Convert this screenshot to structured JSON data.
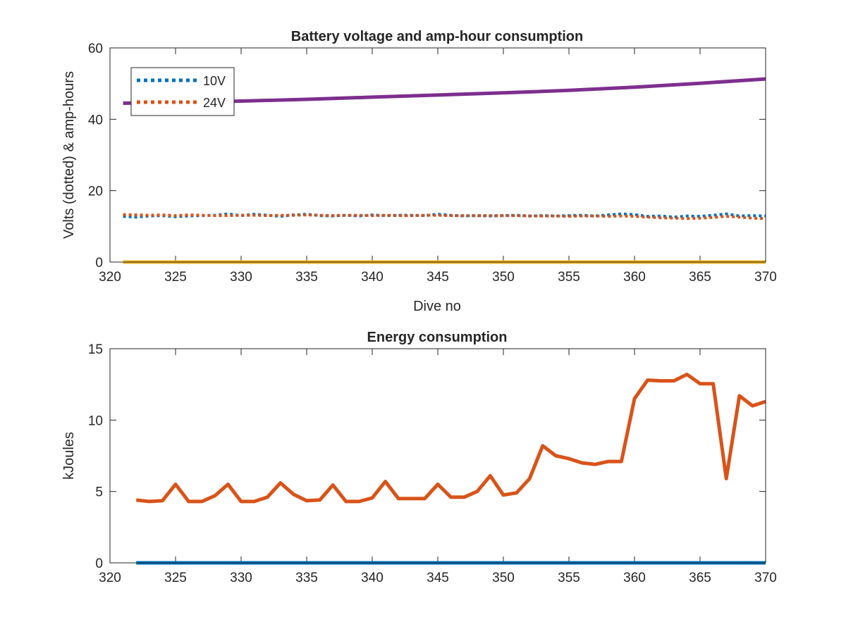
{
  "chart_data": [
    {
      "type": "line",
      "title": "Battery voltage and amp-hour consumption",
      "xlabel": "Dive no",
      "ylabel": "Volts (dotted) & amp-hours",
      "xlim": [
        320,
        370
      ],
      "ylim": [
        0,
        60
      ],
      "xticks": [
        320,
        325,
        330,
        335,
        340,
        345,
        350,
        355,
        360,
        365,
        370
      ],
      "yticks": [
        0,
        20,
        40,
        60
      ],
      "legend": {
        "placement": "top-left",
        "entries": [
          "10V",
          "24V"
        ]
      },
      "grid": false,
      "series": [
        {
          "name": "10V",
          "style": "dotted",
          "color": "#0072BD",
          "x": [
            321,
            322,
            323,
            324,
            325,
            326,
            327,
            328,
            329,
            330,
            331,
            332,
            333,
            334,
            335,
            336,
            337,
            338,
            339,
            340,
            341,
            342,
            343,
            344,
            345,
            346,
            347,
            348,
            349,
            350,
            351,
            352,
            353,
            354,
            355,
            356,
            357,
            358,
            359,
            360,
            361,
            362,
            363,
            364,
            365,
            366,
            367,
            368,
            369,
            370
          ],
          "values": [
            12.8,
            12.6,
            12.9,
            13.0,
            12.7,
            12.9,
            13.0,
            13.1,
            13.5,
            13.0,
            13.4,
            13.1,
            12.8,
            13.2,
            13.4,
            13.0,
            12.9,
            13.1,
            12.9,
            13.2,
            13.0,
            13.1,
            13.1,
            13.0,
            13.4,
            13.1,
            12.9,
            13.0,
            12.9,
            13.0,
            13.1,
            12.9,
            13.0,
            12.9,
            13.0,
            13.1,
            12.9,
            13.2,
            13.5,
            13.3,
            12.8,
            12.9,
            12.6,
            12.9,
            12.8,
            13.1,
            13.5,
            12.9,
            13.0,
            12.9
          ]
        },
        {
          "name": "24V",
          "style": "dotted",
          "color": "#D95319",
          "x": [
            321,
            322,
            323,
            324,
            325,
            326,
            327,
            328,
            329,
            330,
            331,
            332,
            333,
            334,
            335,
            336,
            337,
            338,
            339,
            340,
            341,
            342,
            343,
            344,
            345,
            346,
            347,
            348,
            349,
            350,
            351,
            352,
            353,
            354,
            355,
            356,
            357,
            358,
            359,
            360,
            361,
            362,
            363,
            364,
            365,
            366,
            367,
            368,
            369,
            370
          ],
          "values": [
            13.3,
            13.2,
            13.1,
            13.2,
            13.0,
            13.2,
            13.1,
            13.0,
            13.0,
            13.1,
            13.1,
            13.0,
            13.1,
            13.1,
            13.2,
            13.1,
            13.0,
            13.1,
            13.1,
            13.0,
            13.1,
            13.0,
            13.0,
            13.1,
            13.1,
            13.0,
            13.0,
            13.0,
            13.0,
            13.0,
            13.0,
            12.9,
            12.9,
            12.9,
            12.8,
            12.9,
            12.9,
            12.8,
            12.9,
            12.8,
            12.6,
            12.4,
            12.3,
            12.2,
            12.3,
            12.5,
            12.8,
            12.6,
            12.3,
            12.2
          ]
        },
        {
          "style": "solid",
          "color": "#7E2F8E",
          "x": [
            321,
            325,
            330,
            335,
            340,
            345,
            350,
            355,
            360,
            365,
            370
          ],
          "values": [
            44.5,
            44.7,
            45.1,
            45.6,
            46.2,
            46.8,
            47.4,
            48.1,
            49.0,
            50.1,
            51.3
          ]
        },
        {
          "style": "solid",
          "color": "#EDB120",
          "x": [
            321,
            370
          ],
          "values": [
            0,
            0
          ]
        }
      ]
    },
    {
      "type": "line",
      "title": "Energy consumption",
      "xlabel": "",
      "ylabel": "kJoules",
      "xlim": [
        320,
        370
      ],
      "ylim": [
        0,
        15
      ],
      "xticks": [
        320,
        325,
        330,
        335,
        340,
        345,
        350,
        355,
        360,
        365,
        370
      ],
      "yticks": [
        0,
        5,
        10,
        15
      ],
      "grid": false,
      "series": [
        {
          "style": "solid",
          "color": "#D95319",
          "x": [
            322,
            323,
            324,
            325,
            326,
            327,
            328,
            329,
            330,
            331,
            332,
            333,
            334,
            335,
            336,
            337,
            338,
            339,
            340,
            341,
            342,
            343,
            344,
            345,
            346,
            347,
            348,
            349,
            350,
            351,
            352,
            353,
            354,
            355,
            356,
            357,
            358,
            359,
            360,
            361,
            362,
            363,
            364,
            365,
            366,
            367,
            368,
            369,
            370
          ],
          "values": [
            4.4,
            4.3,
            4.35,
            5.5,
            4.3,
            4.3,
            4.7,
            5.5,
            4.3,
            4.3,
            4.6,
            5.6,
            4.8,
            4.35,
            4.4,
            5.45,
            4.3,
            4.3,
            4.55,
            5.7,
            4.5,
            4.5,
            4.5,
            5.5,
            4.6,
            4.6,
            5.0,
            6.1,
            4.75,
            4.9,
            5.9,
            8.2,
            7.5,
            7.3,
            7.0,
            6.9,
            7.1,
            7.1,
            11.5,
            12.8,
            12.75,
            12.75,
            13.2,
            12.55,
            12.55,
            5.9,
            11.7,
            11.0,
            11.3
          ]
        },
        {
          "style": "solid",
          "color": "#0072BD",
          "x": [
            322,
            370
          ],
          "values": [
            0,
            0
          ]
        }
      ]
    }
  ]
}
